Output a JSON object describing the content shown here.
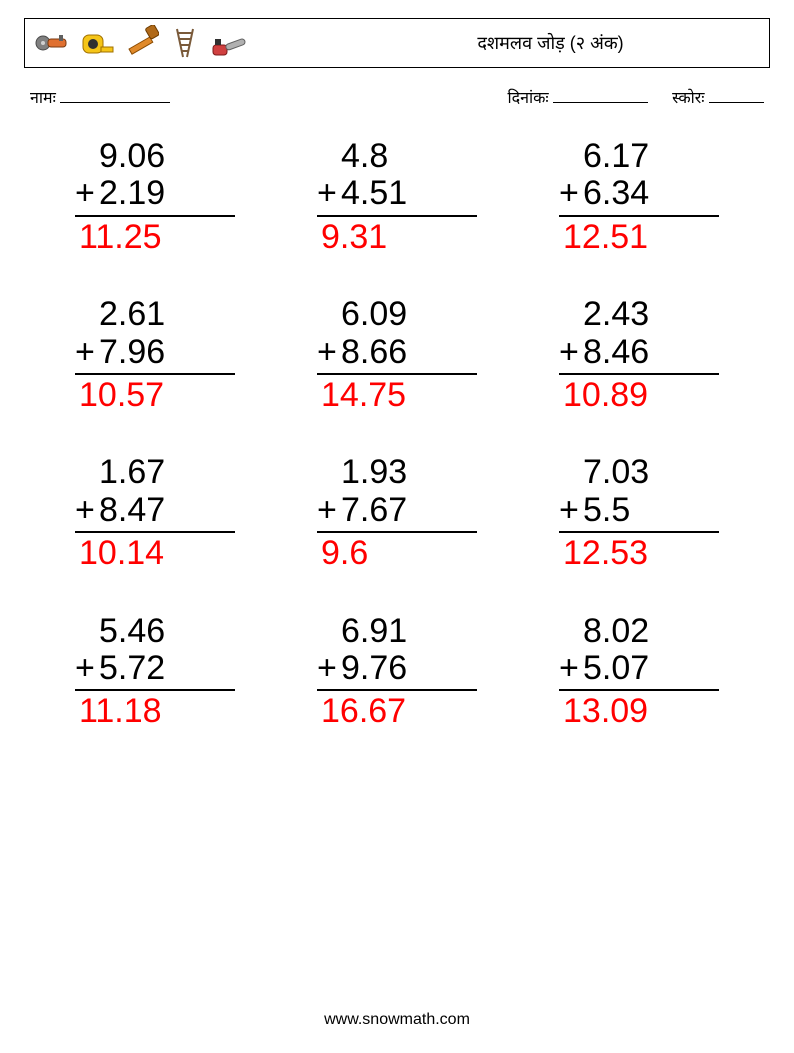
{
  "header": {
    "title": "दशमलव जोड़ (२ अंक)",
    "icons": [
      "grinder-icon",
      "tape-measure-icon",
      "pipe-wrench-icon",
      "ladder-icon",
      "chainsaw-icon"
    ]
  },
  "meta": {
    "name_label": "नामः",
    "date_label": "दिनांकः",
    "score_label": "स्कोरः"
  },
  "style": {
    "num_fontsize": 34,
    "answer_color": "#ff0000",
    "text_color": "#000000",
    "bg_color": "#ffffff",
    "border_color": "#000000"
  },
  "problems": [
    {
      "a": "9.06",
      "b": "2.19",
      "ans": "11.25"
    },
    {
      "a": "4.8",
      "b": "4.51",
      "ans": "9.31"
    },
    {
      "a": "6.17",
      "b": "6.34",
      "ans": "12.51"
    },
    {
      "a": "2.61",
      "b": "7.96",
      "ans": "10.57"
    },
    {
      "a": "6.09",
      "b": "8.66",
      "ans": "14.75"
    },
    {
      "a": "2.43",
      "b": "8.46",
      "ans": "10.89"
    },
    {
      "a": "1.67",
      "b": "8.47",
      "ans": "10.14"
    },
    {
      "a": "1.93",
      "b": "7.67",
      "ans": "9.6"
    },
    {
      "a": "7.03",
      "b": "5.5",
      "ans": "12.53"
    },
    {
      "a": "5.46",
      "b": "5.72",
      "ans": "11.18"
    },
    {
      "a": "6.91",
      "b": "9.76",
      "ans": "16.67"
    },
    {
      "a": "8.02",
      "b": "5.07",
      "ans": "13.09"
    }
  ],
  "operator": "+",
  "footer": "www.snowmath.com"
}
